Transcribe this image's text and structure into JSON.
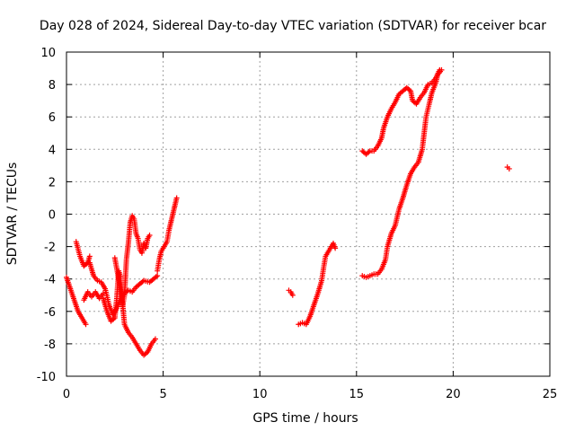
{
  "chart_data": {
    "type": "scatter",
    "title": "Day 028 of 2024, Sidereal Day-to-day VTEC variation (SDTVAR) for receiver bcar",
    "xlabel": "GPS time / hours",
    "ylabel": "SDTVAR / TECUs",
    "xlim": [
      0,
      25
    ],
    "ylim": [
      -10,
      10
    ],
    "xticks": [
      "0",
      "5",
      "10",
      "15",
      "20",
      "25"
    ],
    "yticks": [
      "-10",
      "-8",
      "-6",
      "-4",
      "-2",
      "0",
      "2",
      "4",
      "6",
      "8",
      "10"
    ],
    "grid": true,
    "marker": "plus",
    "color": "#ff0000",
    "segments": [
      [
        [
          0.0,
          -3.9
        ],
        [
          0.2,
          -4.6
        ],
        [
          0.4,
          -5.3
        ],
        [
          0.6,
          -6.0
        ],
        [
          0.8,
          -6.4
        ],
        [
          1.0,
          -6.8
        ]
      ],
      [
        [
          0.5,
          -1.7
        ],
        [
          0.7,
          -2.6
        ],
        [
          0.9,
          -3.2
        ],
        [
          1.1,
          -3.0
        ],
        [
          1.2,
          -2.6
        ]
      ],
      [
        [
          0.9,
          -5.3
        ],
        [
          1.1,
          -4.8
        ],
        [
          1.3,
          -5.1
        ],
        [
          1.5,
          -4.8
        ],
        [
          1.7,
          -5.2
        ],
        [
          1.9,
          -4.9
        ]
      ],
      [
        [
          1.2,
          -3.0
        ],
        [
          1.4,
          -3.8
        ],
        [
          1.6,
          -4.1
        ],
        [
          1.8,
          -4.2
        ],
        [
          2.0,
          -4.6
        ],
        [
          2.2,
          -5.6
        ],
        [
          2.4,
          -6.2
        ],
        [
          2.6,
          -5.8
        ],
        [
          2.8,
          -5.2
        ],
        [
          3.0,
          -4.9
        ],
        [
          3.2,
          -4.7
        ],
        [
          3.4,
          -4.8
        ],
        [
          3.6,
          -4.5
        ],
        [
          3.8,
          -4.3
        ],
        [
          4.0,
          -4.1
        ],
        [
          4.3,
          -4.2
        ],
        [
          4.5,
          -4.0
        ],
        [
          4.7,
          -3.8
        ]
      ],
      [
        [
          1.9,
          -5.2
        ],
        [
          2.1,
          -6.0
        ],
        [
          2.3,
          -6.6
        ],
        [
          2.5,
          -6.4
        ],
        [
          2.6,
          -5.2
        ],
        [
          2.7,
          -3.5
        ],
        [
          2.8,
          -3.9
        ],
        [
          2.9,
          -5.7
        ],
        [
          3.0,
          -5.0
        ],
        [
          3.1,
          -2.8
        ],
        [
          3.2,
          -1.8
        ],
        [
          3.3,
          -0.5
        ],
        [
          3.4,
          -0.1
        ],
        [
          3.5,
          -0.3
        ],
        [
          3.6,
          -1.2
        ],
        [
          3.7,
          -1.5
        ],
        [
          3.8,
          -2.2
        ],
        [
          3.9,
          -2.4
        ],
        [
          4.0,
          -1.8
        ],
        [
          4.1,
          -2.1
        ],
        [
          4.2,
          -1.5
        ],
        [
          4.3,
          -1.3
        ]
      ],
      [
        [
          2.5,
          -2.7
        ],
        [
          2.7,
          -4.0
        ],
        [
          2.9,
          -5.5
        ],
        [
          3.0,
          -6.8
        ],
        [
          3.2,
          -7.3
        ],
        [
          3.4,
          -7.6
        ],
        [
          3.6,
          -8.0
        ],
        [
          3.8,
          -8.4
        ],
        [
          4.0,
          -8.7
        ],
        [
          4.2,
          -8.5
        ],
        [
          4.4,
          -8.0
        ],
        [
          4.6,
          -7.7
        ]
      ],
      [
        [
          4.7,
          -3.5
        ],
        [
          4.8,
          -2.8
        ],
        [
          4.9,
          -2.3
        ],
        [
          5.0,
          -2.1
        ],
        [
          5.2,
          -1.7
        ],
        [
          5.3,
          -1.0
        ],
        [
          5.4,
          -0.5
        ],
        [
          5.5,
          0.0
        ],
        [
          5.6,
          0.5
        ],
        [
          5.7,
          1.0
        ]
      ],
      [
        [
          11.5,
          -4.7
        ],
        [
          11.6,
          -4.8
        ],
        [
          11.7,
          -5.0
        ]
      ],
      [
        [
          12.0,
          -6.8
        ],
        [
          12.2,
          -6.7
        ],
        [
          12.4,
          -6.8
        ],
        [
          12.6,
          -6.3
        ],
        [
          12.8,
          -5.6
        ],
        [
          13.0,
          -4.9
        ],
        [
          13.2,
          -4.1
        ],
        [
          13.3,
          -3.3
        ],
        [
          13.4,
          -2.6
        ],
        [
          13.6,
          -2.2
        ],
        [
          13.8,
          -1.8
        ],
        [
          13.9,
          -2.1
        ]
      ],
      [
        [
          15.3,
          -3.8
        ],
        [
          15.5,
          -3.9
        ],
        [
          15.7,
          -3.8
        ],
        [
          15.9,
          -3.7
        ],
        [
          16.1,
          -3.7
        ],
        [
          16.3,
          -3.4
        ],
        [
          16.5,
          -2.8
        ],
        [
          16.6,
          -2.0
        ],
        [
          16.8,
          -1.2
        ],
        [
          17.0,
          -0.7
        ],
        [
          17.2,
          0.3
        ],
        [
          17.4,
          1.0
        ],
        [
          17.6,
          1.8
        ],
        [
          17.8,
          2.5
        ],
        [
          18.0,
          2.9
        ],
        [
          18.2,
          3.2
        ],
        [
          18.4,
          4.0
        ],
        [
          18.5,
          5.0
        ],
        [
          18.6,
          6.0
        ],
        [
          18.8,
          7.0
        ],
        [
          18.9,
          7.5
        ],
        [
          19.0,
          7.8
        ],
        [
          19.1,
          8.1
        ],
        [
          19.2,
          8.6
        ],
        [
          19.4,
          8.9
        ]
      ],
      [
        [
          15.3,
          3.9
        ],
        [
          15.5,
          3.7
        ],
        [
          15.7,
          3.9
        ],
        [
          15.9,
          3.9
        ],
        [
          16.1,
          4.2
        ],
        [
          16.3,
          4.7
        ],
        [
          16.4,
          5.3
        ],
        [
          16.6,
          6.0
        ],
        [
          16.8,
          6.5
        ],
        [
          17.0,
          6.9
        ],
        [
          17.2,
          7.4
        ],
        [
          17.4,
          7.6
        ],
        [
          17.6,
          7.8
        ],
        [
          17.8,
          7.6
        ],
        [
          17.9,
          7.0
        ],
        [
          18.1,
          6.8
        ],
        [
          18.3,
          7.2
        ],
        [
          18.5,
          7.5
        ],
        [
          18.7,
          8.0
        ],
        [
          18.9,
          8.1
        ],
        [
          19.1,
          8.4
        ],
        [
          19.3,
          8.9
        ]
      ],
      [
        [
          22.8,
          2.9
        ],
        [
          22.9,
          2.8
        ]
      ]
    ]
  }
}
